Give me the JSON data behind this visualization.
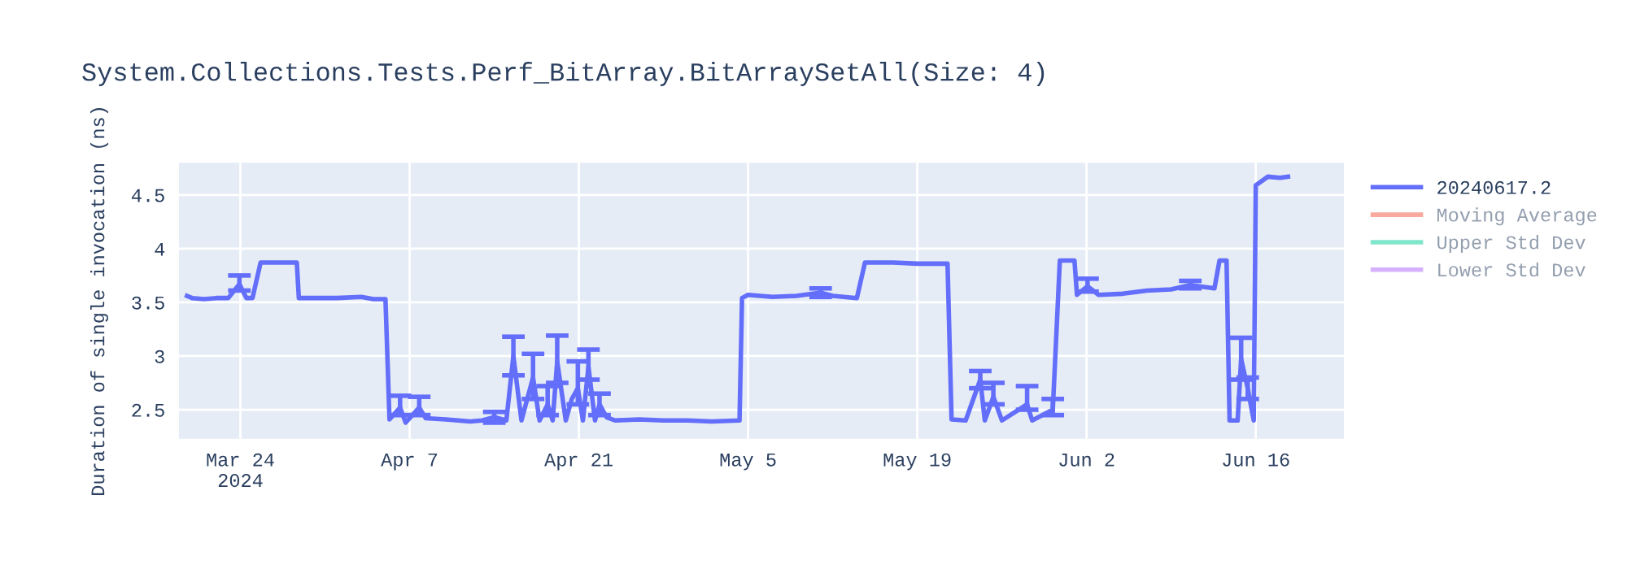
{
  "chart_data": {
    "type": "line",
    "title": "System.Collections.Tests.Perf_BitArray.BitArraySetAll(Size: 4)",
    "ylabel": "Duration of single invocation (ns)",
    "x": [
      "2024-03-19T14:00",
      "2024-03-20",
      "2024-03-21",
      "2024-03-22",
      "2024-03-23",
      "2024-03-23T22:00",
      "2024-03-24T12:00",
      "2024-03-25",
      "2024-03-25T16:00",
      "2024-03-27",
      "2024-03-28T16:00",
      "2024-03-28T20:00",
      "2024-03-30",
      "2024-04-01",
      "2024-04-03",
      "2024-04-04",
      "2024-04-05",
      "2024-04-05T08:00",
      "2024-04-06T05:00",
      "2024-04-06T16:00",
      "2024-04-07T19:00",
      "2024-04-08T08:00",
      "2024-04-10",
      "2024-04-11",
      "2024-04-12",
      "2024-04-13",
      "2024-04-14",
      "2024-04-15",
      "2024-04-15T14:00",
      "2024-04-16T06:00",
      "2024-04-17T05:00",
      "2024-04-17T18:00",
      "2024-04-18T10:00",
      "2024-04-18T20:00",
      "2024-04-19T05:00",
      "2024-04-19T22:00",
      "2024-04-20T10:00",
      "2024-04-20T22:00",
      "2024-04-21T08:00",
      "2024-04-21T19:00",
      "2024-04-22T08:00",
      "2024-04-22T17:00",
      "2024-04-23T07:00",
      "2024-04-24",
      "2024-04-26",
      "2024-04-28",
      "2024-04-30",
      "2024-05-02",
      "2024-05-04T07:00",
      "2024-05-04T12:00",
      "2024-05-05",
      "2024-05-07",
      "2024-05-09",
      "2024-05-11",
      "2024-05-12",
      "2024-05-14",
      "2024-05-14T16:00",
      "2024-05-17",
      "2024-05-19",
      "2024-05-21T12:00",
      "2024-05-21T20:00",
      "2024-05-23",
      "2024-05-24T05:00",
      "2024-05-24T14:00",
      "2024-05-25T07:00",
      "2024-05-26",
      "2024-05-28T02:00",
      "2024-05-28T12:00",
      "2024-05-30T05:00",
      "2024-05-30T19:00",
      "2024-06-01",
      "2024-06-01T05:00",
      "2024-06-02T02:00",
      "2024-06-03",
      "2024-06-05",
      "2024-06-07",
      "2024-06-09",
      "2024-06-10T14:00",
      "2024-06-12T14:00",
      "2024-06-13",
      "2024-06-13T14:00",
      "2024-06-13T20:00",
      "2024-06-14T12:00",
      "2024-06-14T19:00",
      "2024-06-15T08:00",
      "2024-06-15T20:00",
      "2024-06-16",
      "2024-06-17",
      "2024-06-18",
      "2024-06-18T16:00"
    ],
    "series": [
      {
        "name": "20240617.2",
        "color": "#636efa",
        "values": [
          3.56,
          3.54,
          3.53,
          3.54,
          3.54,
          3.67,
          3.54,
          3.54,
          3.87,
          3.87,
          3.87,
          3.54,
          3.54,
          3.54,
          3.55,
          3.53,
          3.53,
          2.41,
          2.52,
          2.38,
          2.52,
          2.42,
          2.41,
          2.4,
          2.39,
          2.4,
          2.43,
          2.4,
          3.0,
          2.4,
          2.8,
          2.4,
          2.55,
          2.4,
          2.95,
          2.4,
          2.6,
          2.7,
          2.4,
          2.9,
          2.4,
          2.55,
          2.43,
          2.4,
          2.41,
          2.4,
          2.4,
          2.39,
          2.4,
          3.54,
          3.57,
          3.55,
          3.56,
          3.59,
          3.56,
          3.54,
          3.87,
          3.87,
          3.86,
          3.86,
          2.41,
          2.4,
          2.78,
          2.4,
          2.62,
          2.4,
          2.55,
          2.4,
          2.5,
          3.89,
          3.89,
          3.57,
          3.65,
          3.57,
          3.58,
          3.61,
          3.62,
          3.66,
          3.63,
          3.89,
          3.89,
          2.4,
          2.4,
          2.97,
          2.7,
          2.4,
          4.59,
          4.67,
          4.66,
          4.67
        ],
        "errors": [
          null,
          null,
          null,
          null,
          null,
          [
            3.61,
            3.75
          ],
          null,
          null,
          null,
          null,
          null,
          null,
          null,
          null,
          null,
          null,
          null,
          null,
          [
            2.45,
            2.63
          ],
          null,
          [
            2.45,
            2.62
          ],
          null,
          null,
          null,
          null,
          null,
          [
            2.38,
            2.48
          ],
          null,
          [
            2.82,
            3.18
          ],
          null,
          [
            2.6,
            3.02
          ],
          null,
          [
            2.45,
            2.72
          ],
          null,
          [
            2.75,
            3.19
          ],
          null,
          null,
          [
            2.55,
            2.95
          ],
          null,
          [
            2.78,
            3.06
          ],
          null,
          [
            2.45,
            2.65
          ],
          null,
          null,
          null,
          null,
          null,
          null,
          null,
          null,
          null,
          null,
          null,
          [
            3.55,
            3.63
          ],
          null,
          null,
          null,
          null,
          null,
          null,
          null,
          null,
          [
            2.7,
            2.86
          ],
          null,
          [
            2.55,
            2.75
          ],
          null,
          [
            2.5,
            2.72
          ],
          null,
          [
            2.45,
            2.6
          ],
          null,
          null,
          null,
          [
            3.6,
            3.72
          ],
          null,
          null,
          null,
          null,
          [
            3.63,
            3.7
          ],
          null,
          null,
          null,
          null,
          null,
          [
            2.78,
            3.17
          ],
          [
            2.6,
            2.8
          ],
          null,
          null,
          null,
          null,
          null
        ]
      },
      {
        "name": "Moving Average",
        "color": "#f7aa9d",
        "values": [
          null,
          null,
          null,
          null,
          null,
          null,
          null,
          null,
          null,
          null,
          null,
          null,
          null,
          null,
          null,
          null,
          null,
          null,
          null,
          null,
          null,
          null,
          null,
          null,
          null,
          null,
          null,
          null,
          null,
          null,
          null,
          null,
          null,
          null,
          null,
          null,
          null,
          null,
          null,
          null,
          null,
          null,
          null,
          null,
          null,
          null,
          null,
          null,
          null,
          null,
          null,
          null,
          null,
          null,
          null,
          null,
          null,
          null,
          null,
          null,
          null,
          null,
          null,
          null,
          null,
          null,
          null,
          null,
          null,
          null,
          null,
          null,
          null,
          null,
          null,
          null,
          null,
          null,
          null,
          null,
          null,
          null,
          null,
          null,
          null,
          null,
          null,
          null,
          null,
          null
        ]
      },
      {
        "name": "Upper Std Dev",
        "color": "#80e6cb",
        "values": [
          null,
          null,
          null,
          null,
          null,
          null,
          null,
          null,
          null,
          null,
          null,
          null,
          null,
          null,
          null,
          null,
          null,
          null,
          null,
          null,
          null,
          null,
          null,
          null,
          null,
          null,
          null,
          null,
          null,
          null,
          null,
          null,
          null,
          null,
          null,
          null,
          null,
          null,
          null,
          null,
          null,
          null,
          null,
          null,
          null,
          null,
          null,
          null,
          null,
          null,
          null,
          null,
          null,
          null,
          null,
          null,
          null,
          null,
          null,
          null,
          null,
          null,
          null,
          null,
          null,
          null,
          null,
          null,
          null,
          null,
          null,
          null,
          null,
          null,
          null,
          null,
          null,
          null,
          null,
          null,
          null,
          null,
          null,
          null,
          null,
          null,
          null,
          null,
          null,
          null
        ]
      },
      {
        "name": "Lower Std Dev",
        "color": "#d5b1fd",
        "values": [
          null,
          null,
          null,
          null,
          null,
          null,
          null,
          null,
          null,
          null,
          null,
          null,
          null,
          null,
          null,
          null,
          null,
          null,
          null,
          null,
          null,
          null,
          null,
          null,
          null,
          null,
          null,
          null,
          null,
          null,
          null,
          null,
          null,
          null,
          null,
          null,
          null,
          null,
          null,
          null,
          null,
          null,
          null,
          null,
          null,
          null,
          null,
          null,
          null,
          null,
          null,
          null,
          null,
          null,
          null,
          null,
          null,
          null,
          null,
          null,
          null,
          null,
          null,
          null,
          null,
          null,
          null,
          null,
          null,
          null,
          null,
          null,
          null,
          null,
          null,
          null,
          null,
          null,
          null,
          null,
          null,
          null,
          null,
          null,
          null,
          null,
          null,
          null,
          null,
          null
        ]
      }
    ],
    "xlim": [
      "2024-03-18T22:00",
      "2024-06-23T07:00"
    ],
    "xticks": [
      {
        "value": "2024-03-24",
        "label": "Mar 24\n2024"
      },
      {
        "value": "2024-04-07",
        "label": "Apr 7"
      },
      {
        "value": "2024-04-21",
        "label": "Apr 21"
      },
      {
        "value": "2024-05-05",
        "label": "May 5"
      },
      {
        "value": "2024-05-19",
        "label": "May 19"
      },
      {
        "value": "2024-06-02",
        "label": "Jun 2"
      },
      {
        "value": "2024-06-16",
        "label": "Jun 16"
      }
    ],
    "ylim": [
      2.23,
      4.8
    ],
    "yticks": [
      2.5,
      3,
      3.5,
      4,
      4.5
    ],
    "grid": true,
    "legend": "right",
    "marker": "none",
    "line_style": "solid"
  }
}
